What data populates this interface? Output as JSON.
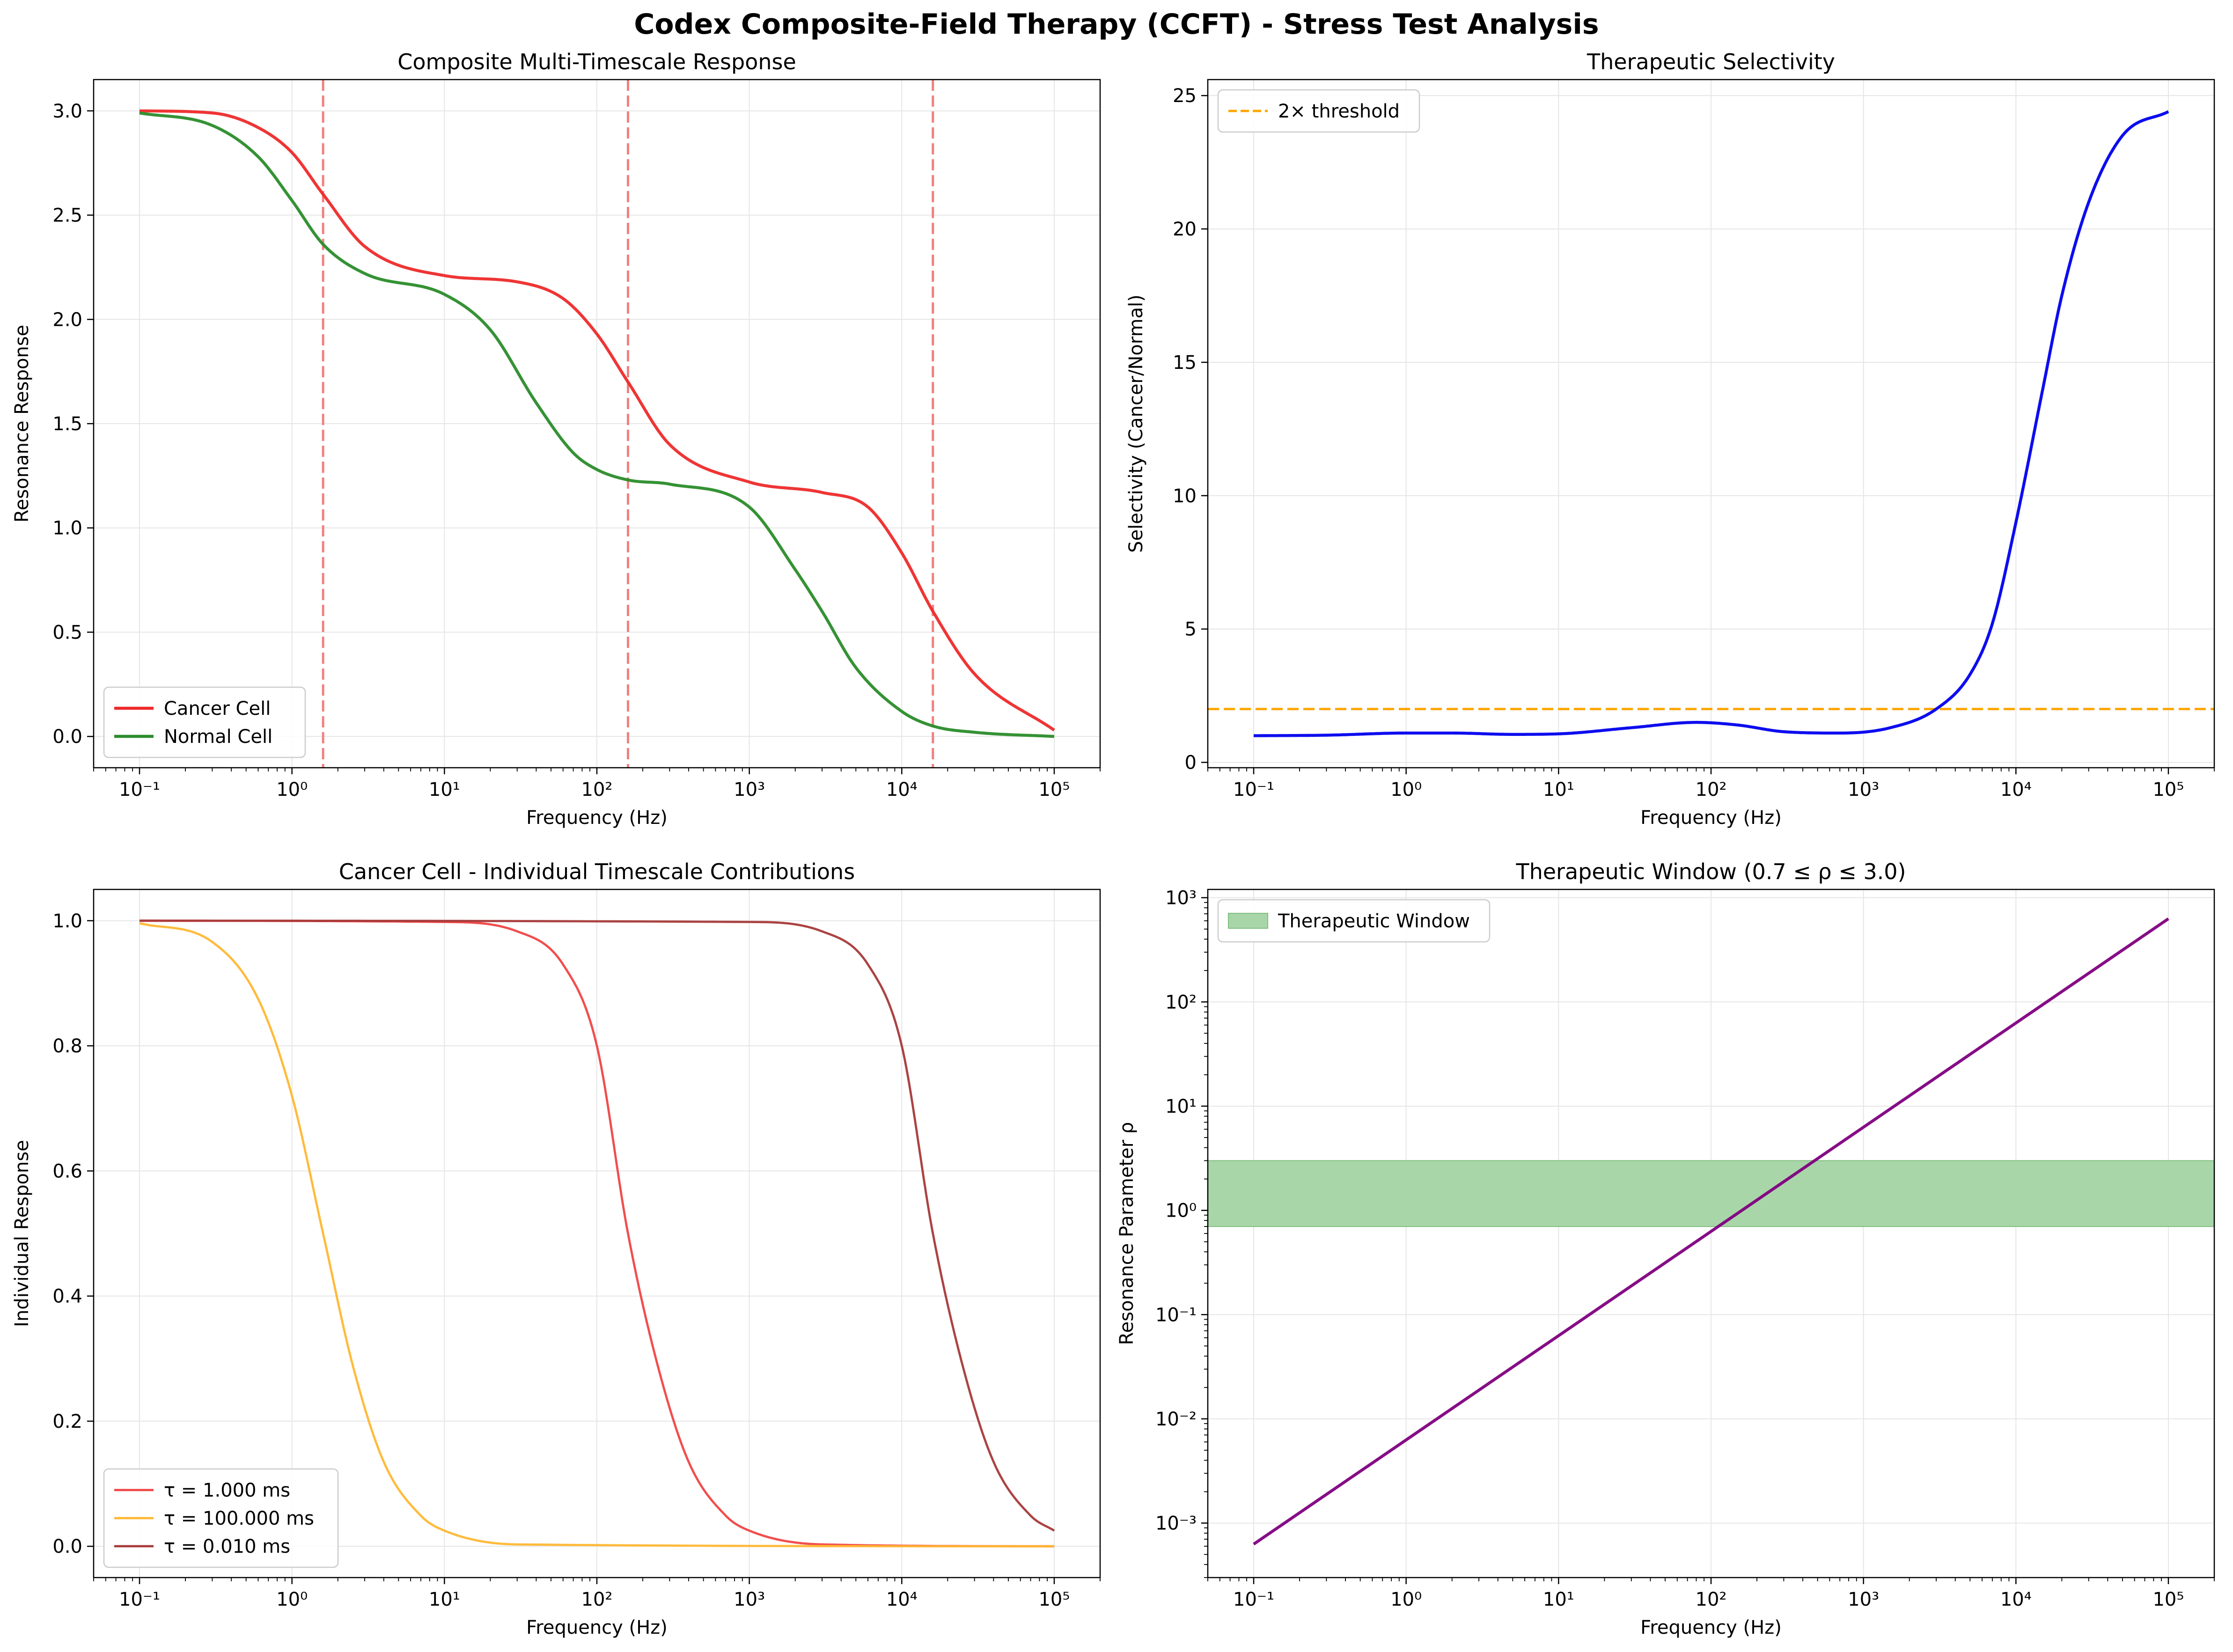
{
  "suptitle": "Codex Composite-Field Therapy (CCFT) - Stress Test Analysis",
  "colors": {
    "cancer": "#ee2a2a",
    "normal": "#2a8c2a",
    "selectivity": "#0000ee",
    "threshold": "#ffa500",
    "tau1": "#f04545",
    "tau100": "#ffb732",
    "tau001": "#a63939",
    "rho": "#800080",
    "window": "#a9d6a9",
    "marker": "#f08080",
    "grid": "#e6e6e6"
  },
  "chart_data": [
    {
      "id": "p1",
      "type": "line",
      "title": "Composite Multi-Timescale Response",
      "xlabel": "Frequency (Hz)",
      "ylabel": "Resonance Response",
      "xscale": "log",
      "xlim": [
        0.05,
        200000
      ],
      "ylim": [
        -0.15,
        3.15
      ],
      "xticks": [
        0.1,
        1,
        10,
        100,
        1000,
        10000,
        100000
      ],
      "xtick_labels": [
        "10⁻¹",
        "10⁰",
        "10¹",
        "10²",
        "10³",
        "10⁴",
        "10⁵"
      ],
      "yticks": [
        0,
        0.5,
        1,
        1.5,
        2,
        2.5,
        3
      ],
      "ytick_labels": [
        "0.0",
        "0.5",
        "1.0",
        "1.5",
        "2.0",
        "2.5",
        "3.0"
      ],
      "grid": true,
      "legend": "lower-left",
      "vlines": [
        1.6,
        160,
        16000
      ],
      "series": [
        {
          "name": "Cancer Cell",
          "color_key": "cancer",
          "width": 2,
          "x": [
            0.1,
            0.3,
            0.6,
            1,
            1.6,
            3,
            10,
            30,
            60,
            100,
            160,
            300,
            1000,
            3000,
            6000,
            10000,
            16000,
            30000,
            100000
          ],
          "y": [
            3.0,
            2.99,
            2.92,
            2.8,
            2.6,
            2.35,
            2.21,
            2.18,
            2.1,
            1.93,
            1.7,
            1.4,
            1.22,
            1.17,
            1.1,
            0.88,
            0.6,
            0.3,
            0.03
          ]
        },
        {
          "name": "Normal Cell",
          "color_key": "normal",
          "width": 2,
          "x": [
            0.1,
            0.3,
            0.6,
            1,
            1.6,
            3,
            10,
            20,
            40,
            70,
            100,
            160,
            300,
            1000,
            2000,
            3000,
            5000,
            10000,
            16000,
            30000,
            100000
          ],
          "y": [
            2.99,
            2.93,
            2.78,
            2.57,
            2.36,
            2.22,
            2.12,
            1.95,
            1.6,
            1.36,
            1.28,
            1.23,
            1.21,
            1.1,
            0.8,
            0.6,
            0.33,
            0.12,
            0.05,
            0.02,
            0.0
          ]
        }
      ]
    },
    {
      "id": "p2",
      "type": "line",
      "title": "Therapeutic Selectivity",
      "xlabel": "Frequency (Hz)",
      "ylabel": "Selectivity (Cancer/Normal)",
      "xscale": "log",
      "xlim": [
        0.05,
        200000
      ],
      "ylim": [
        -0.2,
        25.6
      ],
      "xticks": [
        0.1,
        1,
        10,
        100,
        1000,
        10000,
        100000
      ],
      "xtick_labels": [
        "10⁻¹",
        "10⁰",
        "10¹",
        "10²",
        "10³",
        "10⁴",
        "10⁵"
      ],
      "yticks": [
        0,
        5,
        10,
        15,
        20,
        25
      ],
      "ytick_labels": [
        "0",
        "5",
        "10",
        "15",
        "20",
        "25"
      ],
      "grid": true,
      "legend": "upper-left",
      "hlines": [
        {
          "y": 2,
          "name": "2× threshold",
          "color_key": "threshold"
        }
      ],
      "series": [
        {
          "name": "",
          "color_key": "selectivity",
          "width": 2,
          "x": [
            0.1,
            0.3,
            1,
            2,
            5,
            10,
            30,
            80,
            150,
            300,
            700,
            1500,
            3000,
            5000,
            7000,
            10000,
            15000,
            20000,
            30000,
            50000,
            100000
          ],
          "y": [
            1.0,
            1.02,
            1.1,
            1.1,
            1.05,
            1.07,
            1.3,
            1.5,
            1.4,
            1.15,
            1.1,
            1.3,
            2.0,
            3.3,
            5.2,
            9.0,
            14.0,
            17.5,
            21.0,
            23.5,
            24.4
          ]
        }
      ]
    },
    {
      "id": "p3",
      "type": "line",
      "title": "Cancer Cell - Individual Timescale Contributions",
      "xlabel": "Frequency (Hz)",
      "ylabel": "Individual Response",
      "xscale": "log",
      "xlim": [
        0.05,
        200000
      ],
      "ylim": [
        -0.05,
        1.05
      ],
      "xticks": [
        0.1,
        1,
        10,
        100,
        1000,
        10000,
        100000
      ],
      "xtick_labels": [
        "10⁻¹",
        "10⁰",
        "10¹",
        "10²",
        "10³",
        "10⁴",
        "10⁵"
      ],
      "yticks": [
        0,
        0.2,
        0.4,
        0.6,
        0.8,
        1.0
      ],
      "ytick_labels": [
        "0.0",
        "0.2",
        "0.4",
        "0.6",
        "0.8",
        "1.0"
      ],
      "grid": true,
      "legend": "lower-left",
      "series": [
        {
          "name": "τ = 1.000 ms",
          "color_key": "tau1",
          "width": 1.5,
          "x": [
            0.1,
            10,
            30,
            60,
            100,
            160,
            250,
            400,
            700,
            1000,
            3000,
            100000
          ],
          "y": [
            1.0,
            0.998,
            0.983,
            0.93,
            0.8,
            0.5,
            0.29,
            0.135,
            0.049,
            0.025,
            0.003,
            0.0
          ]
        },
        {
          "name": "τ = 100.000 ms",
          "color_key": "tau100",
          "width": 1.5,
          "x": [
            0.1,
            0.3,
            0.6,
            1,
            1.6,
            2.5,
            4,
            7,
            10,
            30,
            100000
          ],
          "y": [
            0.996,
            0.966,
            0.875,
            0.72,
            0.5,
            0.29,
            0.135,
            0.049,
            0.025,
            0.003,
            0.0
          ]
        },
        {
          "name": "τ = 0.010 ms",
          "color_key": "tau001",
          "width": 1.5,
          "x": [
            0.1,
            1000,
            3000,
            6000,
            10000,
            16000,
            25000,
            40000,
            70000,
            100000
          ],
          "y": [
            1.0,
            0.998,
            0.983,
            0.93,
            0.8,
            0.5,
            0.29,
            0.135,
            0.049,
            0.025
          ]
        }
      ]
    },
    {
      "id": "p4",
      "type": "line",
      "title": "Therapeutic Window (0.7 ≤ ρ ≤ 3.0)",
      "xlabel": "Frequency (Hz)",
      "ylabel": "Resonance Parameter ρ",
      "xscale": "log",
      "yscale": "log",
      "xlim": [
        0.05,
        200000
      ],
      "ylim": [
        0.0003,
        1200
      ],
      "xticks": [
        0.1,
        1,
        10,
        100,
        1000,
        10000,
        100000
      ],
      "xtick_labels": [
        "10⁻¹",
        "10⁰",
        "10¹",
        "10²",
        "10³",
        "10⁴",
        "10⁵"
      ],
      "yticks": [
        0.001,
        0.01,
        0.1,
        1,
        10,
        100,
        1000
      ],
      "ytick_labels": [
        "10⁻³",
        "10⁻²",
        "10⁻¹",
        "10⁰",
        "10¹",
        "10²",
        "10³"
      ],
      "grid": true,
      "legend": "upper-left",
      "band": {
        "y0": 0.7,
        "y1": 3.0,
        "name": "Therapeutic Window",
        "color_key": "window"
      },
      "series": [
        {
          "name": "",
          "color_key": "rho",
          "width": 2,
          "x": [
            0.1,
            100000
          ],
          "y": [
            0.000628,
            628
          ]
        }
      ]
    }
  ]
}
